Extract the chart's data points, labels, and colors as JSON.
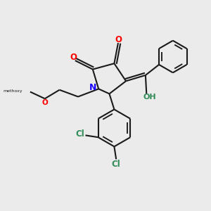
{
  "background_color": "#ebebeb",
  "bond_color": "#1a1a1a",
  "N_color": "#1a00ff",
  "O_color": "#ff0000",
  "OH_color": "#2e8b57",
  "Cl_color": "#2e8b57",
  "lw": 1.5,
  "figsize": [
    3.0,
    3.0
  ],
  "dpi": 100,
  "xlim": [
    0,
    10
  ],
  "ylim": [
    0,
    10
  ]
}
